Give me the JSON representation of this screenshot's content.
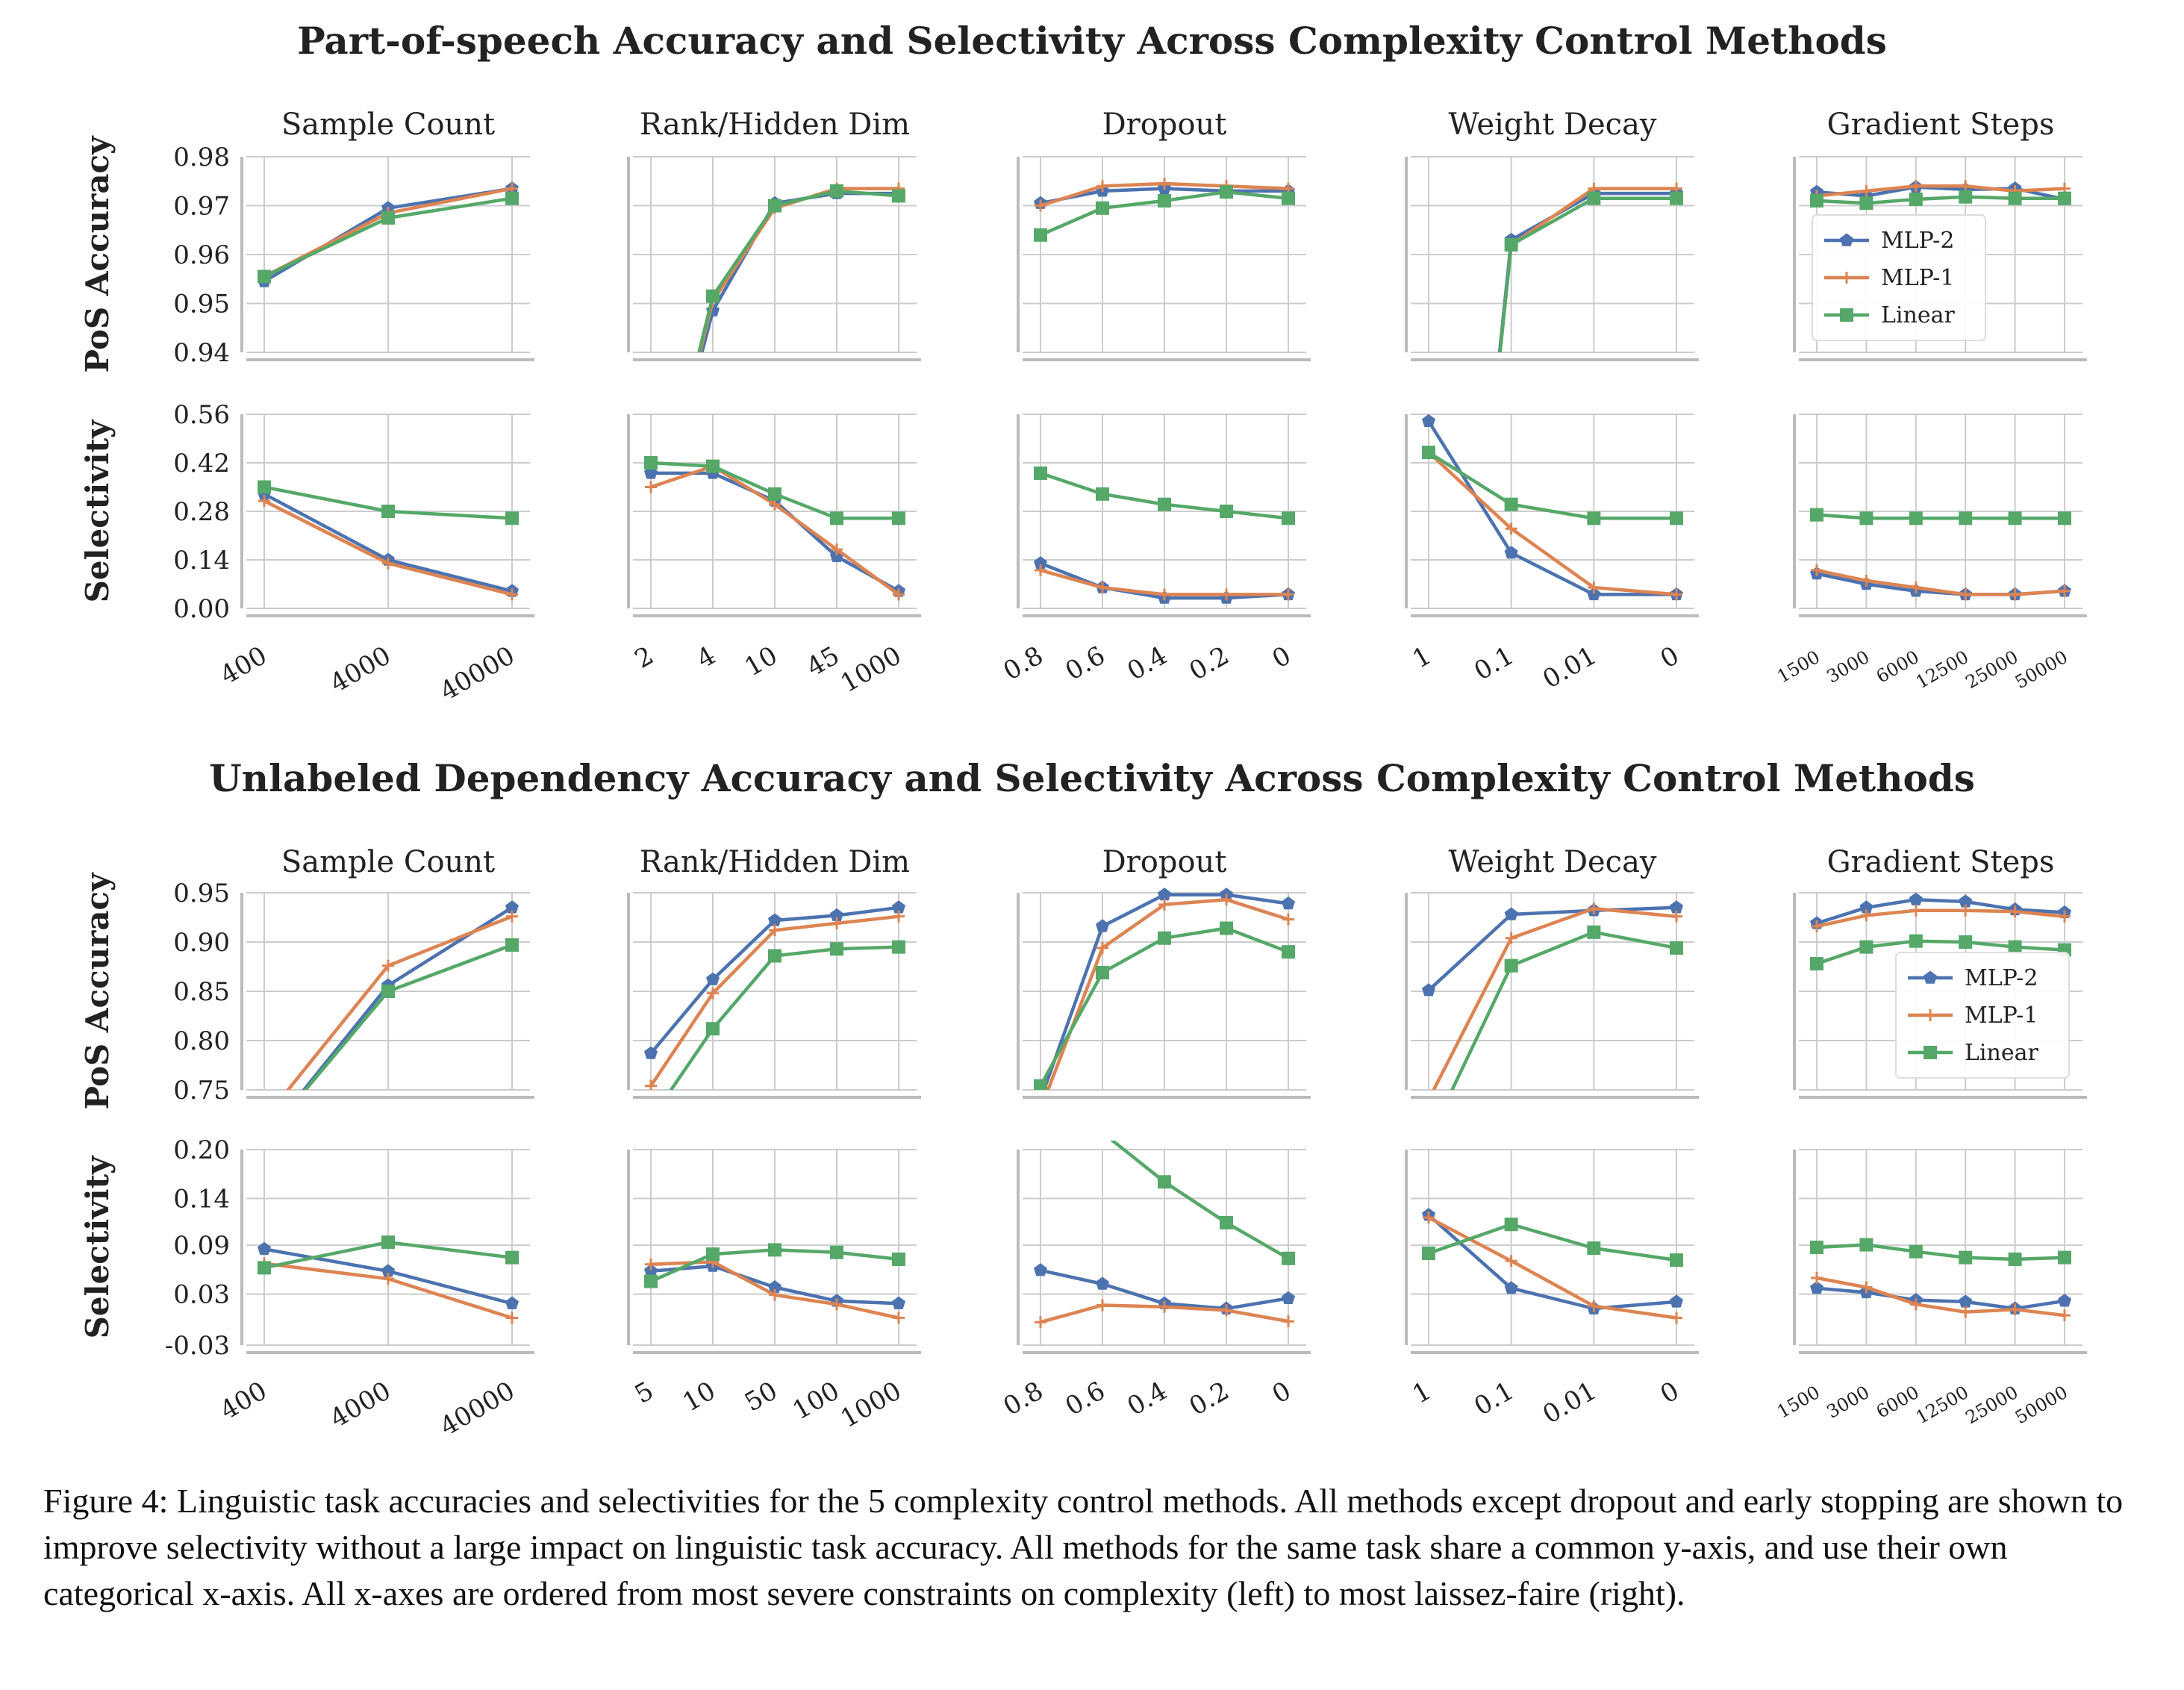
{
  "caption": "Figure 4:  Linguistic task accuracies and selectivities for the 5 complexity control methods. All methods except dropout and early stopping are shown to improve selectivity without a large impact on linguistic task accuracy. All methods for the same task share a common y-axis, and use their own categorical x-axis. All x-axes are ordered from most severe constraints on complexity (left) to most laissez-faire (right).",
  "colors": {
    "MLP-2": "#4c72b0",
    "MLP-1": "#dd8452",
    "Linear": "#55a868",
    "grid": "#cccccc",
    "spine": "#bbbbbb"
  },
  "chart_data": [
    {
      "title": "Part-of-speech Accuracy and Selectivity Across Complexity Control Methods",
      "legend": {
        "entries": [
          "MLP-2",
          "MLP-1",
          "Linear"
        ],
        "panel": 4,
        "placement": "center-left"
      },
      "rows": [
        {
          "ylabel": "PoS Accuracy",
          "ylim": [
            0.94,
            0.98
          ],
          "yticks": [
            "0.94",
            "0.95",
            "0.96",
            "0.97",
            "0.98"
          ],
          "tickvals": [
            0.94,
            0.95,
            0.96,
            0.97,
            0.98
          ]
        },
        {
          "ylabel": "Selectivity",
          "ylim": [
            0.0,
            0.56
          ],
          "yticks": [
            "0.00",
            "0.14",
            "0.28",
            "0.42",
            "0.56"
          ],
          "tickvals": [
            0.0,
            0.14,
            0.28,
            0.42,
            0.56
          ]
        }
      ],
      "panels": [
        {
          "type": "line",
          "subtitle": "Sample Count",
          "categories": [
            "400",
            "4000",
            "40000"
          ],
          "series": [
            {
              "name": "MLP-2",
              "acc": [
                0.9545,
                0.9695,
                0.9735
              ],
              "sel": [
                0.33,
                0.14,
                0.05
              ]
            },
            {
              "name": "MLP-1",
              "acc": [
                0.9555,
                0.9685,
                0.9735
              ],
              "sel": [
                0.31,
                0.13,
                0.04
              ]
            },
            {
              "name": "Linear",
              "acc": [
                0.9555,
                0.9675,
                0.9715
              ],
              "sel": [
                0.35,
                0.28,
                0.26
              ]
            }
          ]
        },
        {
          "type": "line",
          "subtitle": "Rank/Hidden Dim",
          "categories": [
            "2",
            "4",
            "10",
            "45",
            "1000"
          ],
          "series": [
            {
              "name": "MLP-2",
              "acc": [
                0.9,
                0.9485,
                0.9705,
                0.9725,
                0.9725
              ],
              "sel": [
                0.39,
                0.39,
                0.31,
                0.15,
                0.05
              ]
            },
            {
              "name": "MLP-1",
              "acc": [
                0.9,
                0.9505,
                0.9695,
                0.9735,
                0.9735
              ],
              "sel": [
                0.35,
                0.41,
                0.3,
                0.17,
                0.04
              ]
            },
            {
              "name": "Linear",
              "acc": [
                0.9,
                0.9515,
                0.97,
                0.973,
                0.972
              ],
              "sel": [
                0.42,
                0.41,
                0.33,
                0.26,
                0.26
              ]
            }
          ]
        },
        {
          "type": "line",
          "subtitle": "Dropout",
          "categories": [
            "0.8",
            "0.6",
            "0.4",
            "0.2",
            "0"
          ],
          "series": [
            {
              "name": "MLP-2",
              "acc": [
                0.9705,
                0.973,
                0.9735,
                0.973,
                0.973
              ],
              "sel": [
                0.13,
                0.06,
                0.03,
                0.03,
                0.04
              ]
            },
            {
              "name": "MLP-1",
              "acc": [
                0.97,
                0.974,
                0.9745,
                0.974,
                0.9735
              ],
              "sel": [
                0.11,
                0.06,
                0.04,
                0.04,
                0.04
              ]
            },
            {
              "name": "Linear",
              "acc": [
                0.964,
                0.9695,
                0.971,
                0.9728,
                0.9715
              ],
              "sel": [
                0.39,
                0.33,
                0.3,
                0.28,
                0.26
              ]
            }
          ]
        },
        {
          "type": "line",
          "subtitle": "Weight Decay",
          "categories": [
            "1",
            "0.1",
            "0.01",
            "0"
          ],
          "series": [
            {
              "name": "MLP-2",
              "acc": [
                0.8,
                0.963,
                0.9725,
                0.9725
              ],
              "sel": [
                0.54,
                0.16,
                0.04,
                0.04
              ]
            },
            {
              "name": "MLP-1",
              "acc": [
                0.8,
                0.962,
                0.9735,
                0.9735
              ],
              "sel": [
                0.45,
                0.23,
                0.06,
                0.04
              ]
            },
            {
              "name": "Linear",
              "acc": [
                0.8,
                0.962,
                0.9715,
                0.9715
              ],
              "sel": [
                0.45,
                0.3,
                0.26,
                0.26
              ]
            }
          ]
        },
        {
          "type": "line",
          "subtitle": "Gradient Steps",
          "categories": [
            "1500",
            "3000",
            "6000",
            "12500",
            "25000",
            "50000"
          ],
          "small_ticks": true,
          "series": [
            {
              "name": "MLP-2",
              "acc": [
                0.9728,
                0.972,
                0.9738,
                0.9733,
                0.9735,
                0.9713
              ],
              "sel": [
                0.1,
                0.07,
                0.05,
                0.04,
                0.04,
                0.05
              ]
            },
            {
              "name": "MLP-1",
              "acc": [
                0.972,
                0.973,
                0.974,
                0.974,
                0.973,
                0.9735
              ],
              "sel": [
                0.11,
                0.08,
                0.06,
                0.04,
                0.04,
                0.05
              ]
            },
            {
              "name": "Linear",
              "acc": [
                0.971,
                0.9705,
                0.9713,
                0.9718,
                0.9715,
                0.9715
              ],
              "sel": [
                0.27,
                0.26,
                0.26,
                0.26,
                0.26,
                0.26
              ]
            }
          ]
        }
      ]
    },
    {
      "title": "Unlabeled Dependency Accuracy and Selectivity Across Complexity Control Methods",
      "legend": {
        "entries": [
          "MLP-2",
          "MLP-1",
          "Linear"
        ],
        "panel": 4,
        "placement": "lower-right"
      },
      "rows": [
        {
          "ylabel": "PoS Accuracy",
          "ylim": [
            0.75,
            0.95
          ],
          "yticks": [
            "0.75",
            "0.80",
            "0.85",
            "0.90",
            "0.95"
          ],
          "tickvals": [
            0.75,
            0.8,
            0.85,
            0.9,
            0.95
          ]
        },
        {
          "ylabel": "Selectivity",
          "ylim": [
            -0.03,
            0.2
          ],
          "yticks": [
            "-0.03",
            "0.03",
            "0.09",
            "0.14",
            "0.20"
          ],
          "tickvals": [
            -0.03,
            0.03,
            0.0875,
            0.1425,
            0.2
          ]
        }
      ],
      "panels": [
        {
          "type": "line",
          "subtitle": "Sample Count",
          "categories": [
            "400",
            "4000",
            "40000"
          ],
          "series": [
            {
              "name": "MLP-2",
              "acc": [
                0.7,
                0.856,
                0.935
              ],
              "sel": [
                0.083,
                0.057,
                0.019
              ]
            },
            {
              "name": "MLP-1",
              "acc": [
                0.72,
                0.876,
                0.926
              ],
              "sel": [
                0.066,
                0.048,
                0.002
              ]
            },
            {
              "name": "Linear",
              "acc": [
                0.7,
                0.85,
                0.897
              ],
              "sel": [
                0.061,
                0.091,
                0.073
              ]
            }
          ]
        },
        {
          "type": "line",
          "subtitle": "Rank/Hidden Dim",
          "categories": [
            "5",
            "10",
            "50",
            "100",
            "1000"
          ],
          "series": [
            {
              "name": "MLP-2",
              "acc": [
                0.787,
                0.862,
                0.922,
                0.927,
                0.935
              ],
              "sel": [
                0.057,
                0.063,
                0.038,
                0.022,
                0.019
              ]
            },
            {
              "name": "MLP-1",
              "acc": [
                0.754,
                0.848,
                0.912,
                0.919,
                0.926
              ],
              "sel": [
                0.065,
                0.068,
                0.029,
                0.018,
                0.002
              ]
            },
            {
              "name": "Linear",
              "acc": [
                0.72,
                0.812,
                0.886,
                0.893,
                0.895
              ],
              "sel": [
                0.045,
                0.077,
                0.082,
                0.079,
                0.071
              ]
            }
          ]
        },
        {
          "type": "line",
          "subtitle": "Dropout",
          "categories": [
            "0.8",
            "0.6",
            "0.4",
            "0.2",
            "0"
          ],
          "series": [
            {
              "name": "MLP-2",
              "acc": [
                0.74,
                0.916,
                0.948,
                0.948,
                0.939
              ],
              "sel": [
                0.058,
                0.042,
                0.019,
                0.013,
                0.025
              ]
            },
            {
              "name": "MLP-1",
              "acc": [
                0.73,
                0.894,
                0.938,
                0.943,
                0.923
              ],
              "sel": [
                -0.003,
                0.017,
                0.015,
                0.011,
                -0.002
              ]
            },
            {
              "name": "Linear",
              "acc": [
                0.754,
                0.869,
                0.904,
                0.914,
                0.89
              ],
              "sel": [
                0.26,
                0.22,
                0.162,
                0.114,
                0.072
              ]
            }
          ]
        },
        {
          "type": "line",
          "subtitle": "Weight Decay",
          "categories": [
            "1",
            "0.1",
            "0.01",
            "0"
          ],
          "series": [
            {
              "name": "MLP-2",
              "acc": [
                0.851,
                0.928,
                0.932,
                0.935
              ],
              "sel": [
                0.123,
                0.037,
                0.013,
                0.021
              ]
            },
            {
              "name": "MLP-1",
              "acc": [
                0.74,
                0.904,
                0.934,
                0.926
              ],
              "sel": [
                0.12,
                0.069,
                0.016,
                0.002
              ]
            },
            {
              "name": "Linear",
              "acc": [
                0.7,
                0.876,
                0.91,
                0.894
              ],
              "sel": [
                0.078,
                0.112,
                0.084,
                0.07
              ]
            }
          ]
        },
        {
          "type": "line",
          "subtitle": "Gradient Steps",
          "categories": [
            "1500",
            "3000",
            "6000",
            "12500",
            "25000",
            "50000"
          ],
          "small_ticks": true,
          "series": [
            {
              "name": "MLP-2",
              "acc": [
                0.919,
                0.935,
                0.943,
                0.941,
                0.933,
                0.93
              ],
              "sel": [
                0.037,
                0.032,
                0.023,
                0.021,
                0.013,
                0.022
              ]
            },
            {
              "name": "MLP-1",
              "acc": [
                0.916,
                0.927,
                0.932,
                0.932,
                0.931,
                0.926
              ],
              "sel": [
                0.049,
                0.038,
                0.018,
                0.009,
                0.012,
                0.005
              ]
            },
            {
              "name": "Linear",
              "acc": [
                0.878,
                0.895,
                0.901,
                0.9,
                0.895,
                0.892
              ],
              "sel": [
                0.085,
                0.088,
                0.08,
                0.073,
                0.071,
                0.073
              ]
            }
          ]
        }
      ]
    }
  ]
}
